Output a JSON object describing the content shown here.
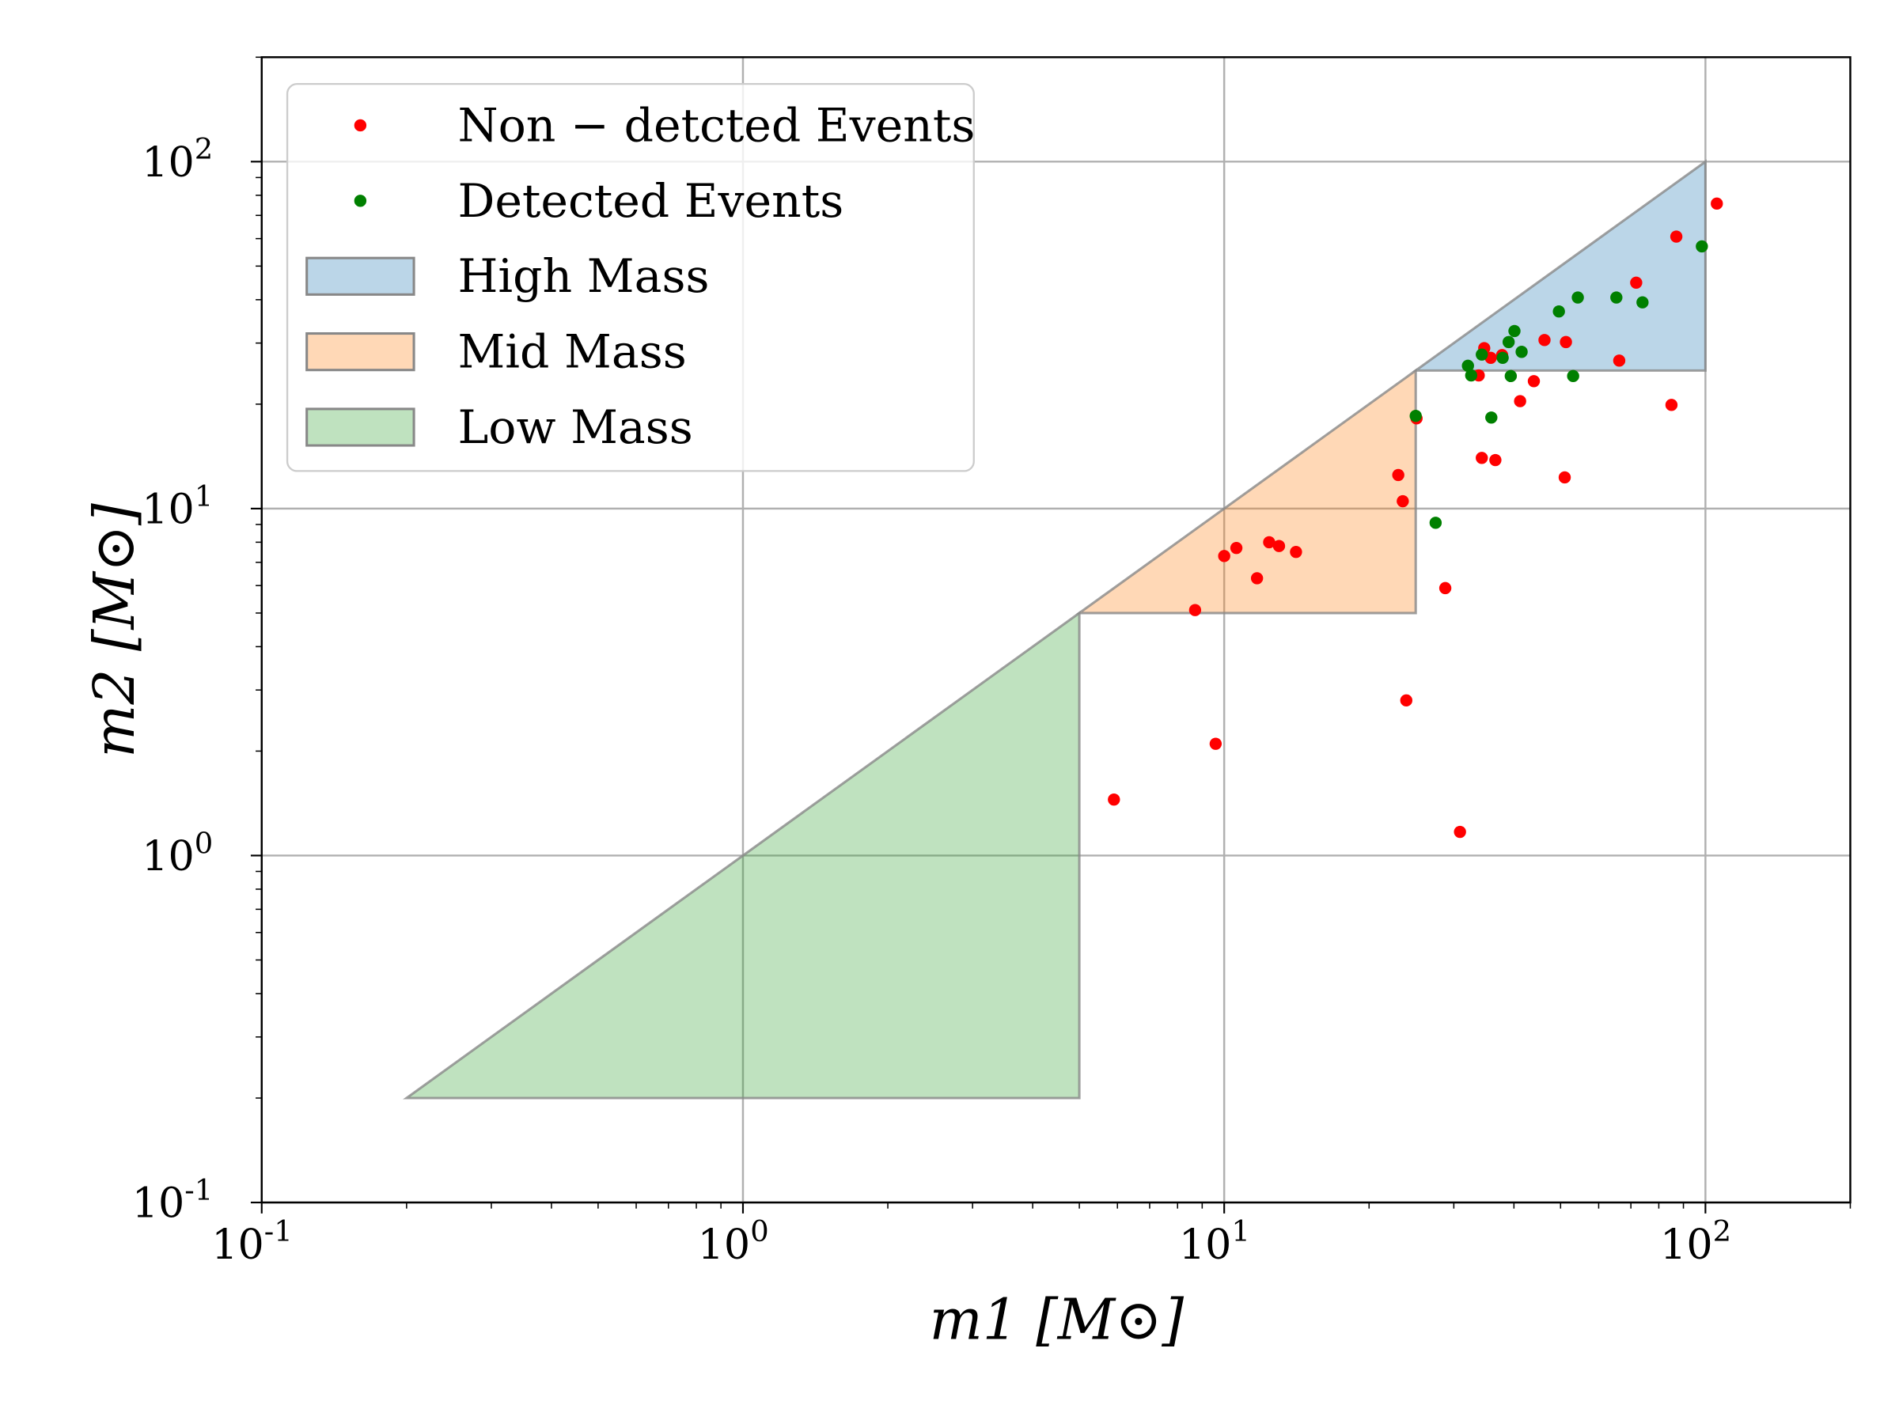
{
  "chart_data": {
    "type": "scatter",
    "title": "",
    "xlabel": "m1 [M⊙]",
    "ylabel": "m2 [M⊙]",
    "xscale": "log",
    "yscale": "log",
    "xlim": [
      0.1,
      200
    ],
    "ylim": [
      0.1,
      200
    ],
    "grid": true,
    "legend_placement": "top-left",
    "x_ticks": [
      {
        "base": "10",
        "exp": "-1",
        "value": 0.1
      },
      {
        "base": "10",
        "exp": "0",
        "value": 1
      },
      {
        "base": "10",
        "exp": "1",
        "value": 10
      },
      {
        "base": "10",
        "exp": "2",
        "value": 100
      }
    ],
    "y_ticks": [
      {
        "base": "10",
        "exp": "-1",
        "value": 0.1
      },
      {
        "base": "10",
        "exp": "0",
        "value": 1
      },
      {
        "base": "10",
        "exp": "1",
        "value": 10
      },
      {
        "base": "10",
        "exp": "2",
        "value": 100
      }
    ],
    "regions": [
      {
        "name": "High Mass",
        "color": "#1f77b4",
        "points": [
          [
            25,
            25
          ],
          [
            100,
            100
          ],
          [
            100,
            25
          ]
        ]
      },
      {
        "name": "Mid Mass",
        "color": "#ff7f0e",
        "points": [
          [
            5,
            5
          ],
          [
            25,
            25
          ],
          [
            25,
            5
          ]
        ]
      },
      {
        "name": "Low Mass",
        "color": "#2ca02c",
        "points": [
          [
            0.2,
            0.2
          ],
          [
            5,
            5
          ],
          [
            5,
            0.2
          ]
        ]
      }
    ],
    "series": [
      {
        "name": "Non − detcted Events",
        "color": "#ff0000",
        "points": [
          [
            105.6,
            75.7
          ],
          [
            87,
            60.8
          ],
          [
            71.8,
            44.8
          ],
          [
            46.3,
            30.6
          ],
          [
            51.3,
            30.2
          ],
          [
            66.2,
            26.7
          ],
          [
            34.7,
            29
          ],
          [
            35.8,
            27.2
          ],
          [
            37.8,
            27.7
          ],
          [
            33.8,
            24.2
          ],
          [
            44,
            23.3
          ],
          [
            41.2,
            20.4
          ],
          [
            85,
            19.9
          ],
          [
            25.1,
            18.2
          ],
          [
            34.3,
            14.0
          ],
          [
            36.6,
            13.8
          ],
          [
            23.0,
            12.5
          ],
          [
            51,
            12.3
          ],
          [
            23.5,
            10.5
          ],
          [
            10.0,
            7.3
          ],
          [
            10.6,
            7.7
          ],
          [
            12.4,
            8.0
          ],
          [
            13.0,
            7.8
          ],
          [
            14.1,
            7.5
          ],
          [
            11.7,
            6.3
          ],
          [
            8.7,
            5.1
          ],
          [
            28.8,
            5.9
          ],
          [
            23.9,
            2.8
          ],
          [
            9.6,
            2.1
          ],
          [
            5.9,
            1.45
          ],
          [
            30.9,
            1.17
          ]
        ]
      },
      {
        "name": "Detected Events",
        "color": "#008000",
        "points": [
          [
            98.3,
            57
          ],
          [
            54.3,
            40.6
          ],
          [
            65.3,
            40.6
          ],
          [
            74,
            39.3
          ],
          [
            49.6,
            37
          ],
          [
            40.1,
            32.5
          ],
          [
            39,
            30.2
          ],
          [
            41.5,
            28.3
          ],
          [
            34.3,
            27.8
          ],
          [
            37.9,
            27.2
          ],
          [
            32.1,
            25.8
          ],
          [
            32.6,
            24.2
          ],
          [
            39.4,
            24.1
          ],
          [
            53.1,
            24.1
          ],
          [
            25.0,
            18.5
          ],
          [
            35.9,
            18.3
          ],
          [
            27.5,
            9.1
          ]
        ]
      }
    ]
  }
}
